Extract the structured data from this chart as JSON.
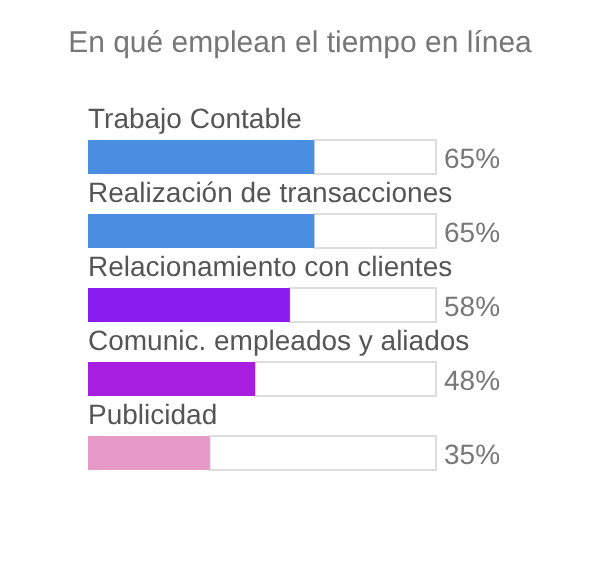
{
  "chart_data": {
    "type": "bar",
    "orientation": "horizontal",
    "title": "En qué emplean el tiempo en línea",
    "categories": [
      "Trabajo Contable",
      "Realización de transacciones",
      "Relacionamiento con clientes",
      "Comunic. empleados y aliados",
      "Publicidad"
    ],
    "values": [
      65,
      65,
      58,
      48,
      35
    ],
    "colors": [
      "#4a8ee2",
      "#4a8ee2",
      "#8a1cf0",
      "#a81ee0",
      "#e79ac8"
    ],
    "value_labels": [
      "65%",
      "65%",
      "58%",
      "48%",
      "35%"
    ],
    "xlim": [
      0,
      100
    ]
  }
}
